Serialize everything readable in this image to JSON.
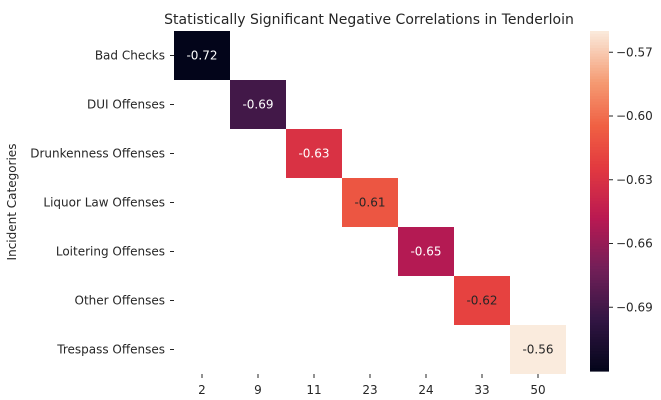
{
  "chart_data": {
    "type": "heatmap",
    "title": "Statistically Significant Negative Correlations in Tenderloin",
    "ylabel": "Incident Categories",
    "xlabel": "",
    "x_categories": [
      "2",
      "9",
      "11",
      "23",
      "24",
      "33",
      "50"
    ],
    "y_categories": [
      "Bad Checks",
      "DUI Offenses",
      "Drunkenness Offenses",
      "Liquor Law Offenses",
      "Loitering Offenses",
      "Other Offenses",
      "Trespass Offenses"
    ],
    "cells": [
      {
        "row": "Bad Checks",
        "col": "2",
        "value": -0.72,
        "label": "-0.72"
      },
      {
        "row": "DUI Offenses",
        "col": "9",
        "value": -0.69,
        "label": "-0.69"
      },
      {
        "row": "Drunkenness Offenses",
        "col": "11",
        "value": -0.63,
        "label": "-0.63"
      },
      {
        "row": "Liquor Law Offenses",
        "col": "23",
        "value": -0.61,
        "label": "-0.61"
      },
      {
        "row": "Loitering Offenses",
        "col": "24",
        "value": -0.65,
        "label": "-0.65"
      },
      {
        "row": "Other Offenses",
        "col": "33",
        "value": -0.62,
        "label": "-0.62"
      },
      {
        "row": "Trespass Offenses",
        "col": "50",
        "value": -0.56,
        "label": "-0.56"
      }
    ],
    "colorbar": {
      "colormap": "rocket",
      "vmin": -0.72,
      "vmax": -0.56,
      "tick_values": [
        -0.69,
        -0.66,
        -0.63,
        -0.6,
        -0.57
      ],
      "tick_labels": [
        "−0.69",
        "−0.66",
        "−0.63",
        "−0.60",
        "−0.57"
      ]
    }
  }
}
